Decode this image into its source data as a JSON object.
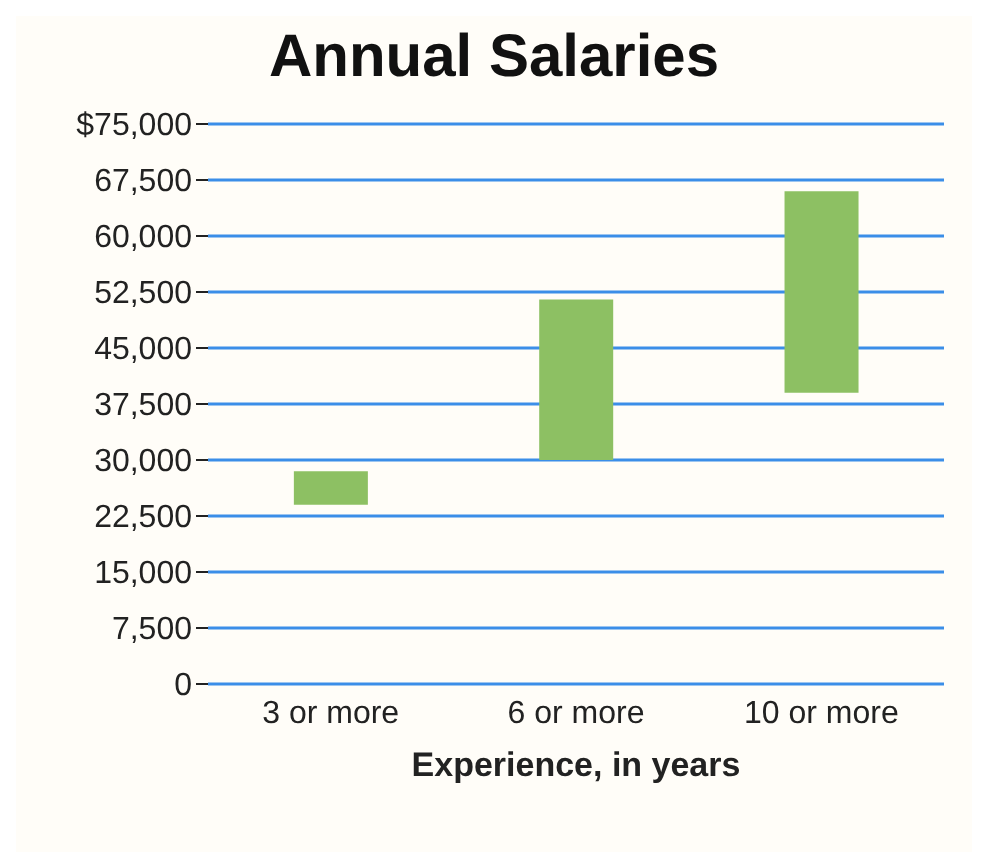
{
  "chart_data": {
    "type": "bar",
    "title": "Annual Salaries",
    "xlabel": "Experience, in years",
    "categories": [
      "3 or more",
      "6 or more",
      "10 or more"
    ],
    "base": [
      24000,
      30000,
      39000
    ],
    "values": [
      4500,
      21500,
      27000
    ],
    "color": "#8dc063",
    "ylim": [
      0,
      75000
    ],
    "yticks": [
      0,
      {
        "value": 7500,
        "label": "7,500"
      },
      {
        "value": 15000,
        "label": "15,000"
      },
      {
        "value": 22500,
        "label": "22,500"
      },
      {
        "value": 30000,
        "label": "30,000"
      },
      {
        "value": 37500,
        "label": "37,500"
      },
      {
        "value": 45000,
        "label": "45,000"
      },
      {
        "value": 52500,
        "label": "52,500"
      },
      {
        "value": 60000,
        "label": "60,000"
      },
      {
        "value": 67500,
        "label": "67,500"
      },
      {
        "value": 75000,
        "label": "$75,000"
      }
    ],
    "grid": "y"
  }
}
